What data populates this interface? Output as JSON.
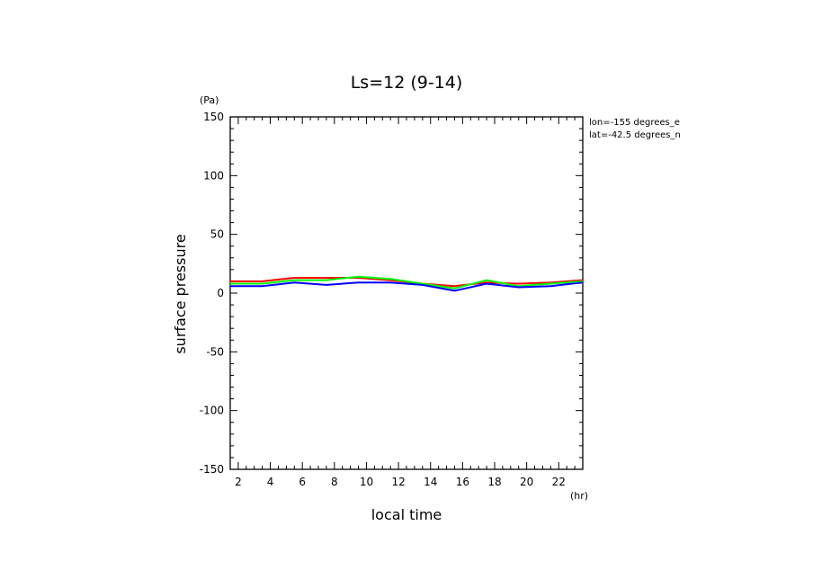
{
  "chart_data": {
    "type": "line",
    "title": "Ls=12 (9-14)",
    "xlabel": "local time",
    "ylabel": "surface pressure",
    "x_unit": "(hr)",
    "y_unit": "(Pa)",
    "xlim": [
      1.5,
      23.5
    ],
    "ylim": [
      -150,
      150
    ],
    "x_ticks": [
      2,
      4,
      6,
      8,
      10,
      12,
      14,
      16,
      18,
      20,
      22
    ],
    "x_tick_labels": [
      "2",
      "4",
      "6",
      "8",
      "10",
      "12",
      "14",
      "16",
      "18",
      "20",
      "22"
    ],
    "y_ticks": [
      -150,
      -100,
      -50,
      0,
      50,
      100,
      150
    ],
    "y_tick_labels": [
      "-150",
      "-100",
      "-50",
      "0",
      "50",
      "100",
      "150"
    ],
    "annotations": [
      "lon=-155 degrees_e",
      "lat=-42.5 degrees_n"
    ],
    "x": [
      1.5,
      3.5,
      5.5,
      7.5,
      9.5,
      11.5,
      13.5,
      15.5,
      17.5,
      19.5,
      21.5,
      23.5
    ],
    "series": [
      {
        "name": "red",
        "color": "#ff0000",
        "values": [
          10,
          10,
          13,
          13,
          13,
          11,
          8,
          6,
          9,
          8,
          9,
          11
        ]
      },
      {
        "name": "green",
        "color": "#00ff00",
        "values": [
          8,
          8,
          11,
          11,
          14,
          12,
          8,
          4,
          11,
          6,
          8,
          10
        ]
      },
      {
        "name": "blue",
        "color": "#0000ff",
        "values": [
          6,
          6,
          9,
          7,
          9,
          9,
          7,
          2,
          8,
          5,
          6,
          9
        ]
      }
    ]
  }
}
